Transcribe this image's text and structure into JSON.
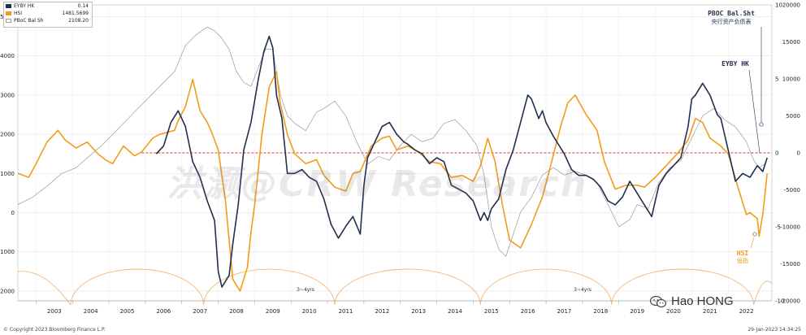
{
  "watermark": "洪灏@CRW Research",
  "legend": [
    {
      "name": "EYBY HK",
      "value": "0.14",
      "color": "#1f2f4f",
      "style": "solid"
    },
    {
      "name": "HSI",
      "value": "1481.5699",
      "color": "#f39c1a",
      "style": "solid"
    },
    {
      "name": "PBoC Bal Sht",
      "value": "2108.20",
      "color": "#999999",
      "style": "thin"
    }
  ],
  "footer": {
    "copyright": "© Copyright 2023 Bloomberg Finance L.P.",
    "timestamp": "29-Jan-2023 14:34:25"
  },
  "brand": "Hao HONG",
  "chart_data": {
    "type": "line",
    "x_ticks": [
      "2003",
      "2004",
      "2005",
      "2006",
      "2007",
      "2008",
      "2009",
      "2010",
      "2011",
      "2012",
      "2013",
      "2014",
      "2015",
      "2016",
      "2017",
      "2018",
      "2019",
      "2020",
      "2021",
      "2022"
    ],
    "left_axis": {
      "ticks": [
        -2000,
        -1000,
        0,
        1000,
        2000,
        3000,
        4000,
        5000
      ],
      "ylim": [
        -2250,
        5300
      ]
    },
    "right_axis": {
      "ticks": [
        -20000,
        -15000,
        -10000,
        -5000,
        0,
        5000,
        10000,
        15000,
        20000
      ],
      "ylim": [
        -20000,
        20000
      ]
    },
    "right_axis_inner": {
      "ticks": [
        -10,
        -5,
        0,
        5,
        10
      ],
      "ylim": [
        -10,
        10
      ]
    },
    "annotations": [
      {
        "text": "PBOC Bal.Sht",
        "subtext": "央行资产负债表"
      },
      {
        "text": "EYBY HK"
      },
      {
        "text": "HSI",
        "subtext": "恒指"
      },
      {
        "text": "3~4yrs"
      },
      {
        "text": "3~4yrs"
      }
    ],
    "cycle_troughs": [
      2003.95,
      2007.6,
      2011.2,
      2015.2,
      2018.8,
      2022.7
    ],
    "zero_line": {
      "value": 0,
      "start": 2005.9
    },
    "series": [
      {
        "name": "HSI",
        "color": "#f39c1a",
        "x": [
          2002.5,
          2002.8,
          2003.0,
          2003.3,
          2003.6,
          2003.8,
          2004.1,
          2004.4,
          2004.7,
          2004.9,
          2005.1,
          2005.4,
          2005.7,
          2005.9,
          2006.2,
          2006.4,
          2006.6,
          2006.8,
          2006.9,
          2007.1,
          2007.3,
          2007.5,
          2007.7,
          2007.8,
          2008.0,
          2008.2,
          2008.4,
          2008.6,
          2008.8,
          2008.9,
          2009.0,
          2009.2,
          2009.4,
          2009.6,
          2009.7,
          2009.9,
          2010.1,
          2010.4,
          2010.7,
          2010.9,
          2011.2,
          2011.5,
          2011.7,
          2011.9,
          2012.2,
          2012.5,
          2012.7,
          2012.9,
          2013.2,
          2013.5,
          2013.8,
          2014.1,
          2014.4,
          2014.7,
          2015.0,
          2015.2,
          2015.4,
          2015.6,
          2015.8,
          2016.0,
          2016.3,
          2016.6,
          2016.9,
          2017.1,
          2017.4,
          2017.6,
          2017.8,
          2018.1,
          2018.4,
          2018.6,
          2018.9,
          2019.2,
          2019.5,
          2019.7,
          2020.0,
          2020.3,
          2020.6,
          2020.9,
          2021.1,
          2021.3,
          2021.5,
          2021.8,
          2022.0,
          2022.3,
          2022.5,
          2022.6,
          2022.8,
          2022.85,
          2022.95,
          2023.07
        ],
        "y": [
          1000,
          900,
          1250,
          1800,
          2100,
          1850,
          1650,
          1800,
          1500,
          1350,
          1250,
          1700,
          1450,
          1550,
          1900,
          2000,
          2050,
          2100,
          2350,
          2700,
          3400,
          2600,
          2300,
          2100,
          1600,
          300,
          -1700,
          -2000,
          -1400,
          -500,
          200,
          2000,
          3200,
          3600,
          2800,
          2000,
          1500,
          1250,
          1350,
          950,
          650,
          550,
          1000,
          1050,
          1700,
          1900,
          1950,
          1600,
          1700,
          1550,
          1300,
          1250,
          900,
          950,
          800,
          1200,
          1900,
          1300,
          200,
          -700,
          -900,
          -300,
          400,
          1100,
          2200,
          2800,
          3000,
          2500,
          2100,
          1300,
          600,
          700,
          700,
          650,
          900,
          1200,
          1500,
          1850,
          2400,
          2300,
          1900,
          1700,
          1500,
          550,
          -50,
          0,
          -150,
          -600,
          -50,
          1000
        ]
      },
      {
        "name": "EYBY HK",
        "color": "#1f2f4f",
        "x": [
          2006.3,
          2006.5,
          2006.7,
          2006.9,
          2007.1,
          2007.3,
          2007.5,
          2007.7,
          2007.9,
          2008.0,
          2008.1,
          2008.3,
          2008.4,
          2008.55,
          2008.7,
          2008.9,
          2009.1,
          2009.25,
          2009.4,
          2009.5,
          2009.6,
          2009.75,
          2009.9,
          2010.1,
          2010.3,
          2010.5,
          2010.7,
          2010.9,
          2011.1,
          2011.3,
          2011.5,
          2011.7,
          2011.9,
          2012.0,
          2012.1,
          2012.3,
          2012.5,
          2012.7,
          2012.9,
          2013.1,
          2013.2,
          2013.4,
          2013.6,
          2013.8,
          2014.0,
          2014.2,
          2014.4,
          2014.6,
          2014.8,
          2015.0,
          2015.2,
          2015.3,
          2015.4,
          2015.5,
          2015.7,
          2015.9,
          2016.1,
          2016.3,
          2016.5,
          2016.6,
          2016.8,
          2016.9,
          2017.0,
          2017.2,
          2017.5,
          2017.7,
          2017.9,
          2018.1,
          2018.3,
          2018.5,
          2018.7,
          2018.9,
          2019.1,
          2019.3,
          2019.5,
          2019.7,
          2019.9,
          2020.0,
          2020.1,
          2020.3,
          2020.5,
          2020.7,
          2020.9,
          2021.0,
          2021.1,
          2021.3,
          2021.5,
          2021.7,
          2021.8,
          2022.0,
          2022.2,
          2022.4,
          2022.6,
          2022.8,
          2022.95,
          2023.07
        ],
        "y": [
          1500,
          1700,
          2300,
          2600,
          2200,
          1300,
          900,
          300,
          -200,
          -1500,
          -1900,
          -1600,
          -800,
          200,
          1600,
          2300,
          3400,
          4100,
          4500,
          4200,
          3000,
          2400,
          1000,
          1000,
          1100,
          900,
          800,
          350,
          -300,
          -650,
          -350,
          -100,
          -550,
          700,
          1400,
          1800,
          2200,
          2300,
          2000,
          1800,
          1750,
          1600,
          1500,
          1250,
          1400,
          1300,
          700,
          600,
          500,
          300,
          -200,
          0,
          -200,
          100,
          350,
          1100,
          1600,
          2300,
          3000,
          2900,
          2400,
          2600,
          2300,
          1950,
          1500,
          1100,
          950,
          950,
          850,
          650,
          300,
          200,
          400,
          800,
          500,
          200,
          -100,
          300,
          700,
          1000,
          1200,
          1400,
          2200,
          2900,
          3000,
          3300,
          3000,
          2500,
          2400,
          1600,
          800,
          1000,
          900,
          1200,
          1050,
          1400
        ]
      },
      {
        "name": "PBoC Bal Sht",
        "color": "#8a8a8a",
        "x": [
          2002.5,
          2002.9,
          2003.3,
          2003.7,
          2004.1,
          2004.4,
          2004.8,
          2005.1,
          2005.4,
          2005.8,
          2006.1,
          2006.5,
          2006.8,
          2007.1,
          2007.4,
          2007.7,
          2007.9,
          2008.1,
          2008.3,
          2008.5,
          2008.7,
          2008.9,
          2009.1,
          2009.3,
          2009.5,
          2009.7,
          2009.9,
          2010.1,
          2010.4,
          2010.7,
          2010.9,
          2011.2,
          2011.5,
          2011.8,
          2012.1,
          2012.4,
          2012.7,
          2013.0,
          2013.3,
          2013.6,
          2013.9,
          2014.2,
          2014.5,
          2014.8,
          2015.1,
          2015.3,
          2015.5,
          2015.7,
          2015.9,
          2016.1,
          2016.3,
          2016.6,
          2016.9,
          2017.2,
          2017.5,
          2017.8,
          2018.1,
          2018.4,
          2018.7,
          2019.0,
          2019.3,
          2019.5,
          2019.8,
          2020.1,
          2020.4,
          2020.7,
          2021.0,
          2021.3,
          2021.6,
          2021.9,
          2022.2,
          2022.5,
          2022.7,
          2022.85,
          2023.0
        ],
        "y": [
          -7000,
          -6000,
          -4500,
          -2800,
          -2000,
          -700,
          1000,
          2500,
          4000,
          6000,
          7500,
          9500,
          11000,
          14500,
          16000,
          17000,
          16500,
          15500,
          14000,
          11000,
          9500,
          9000,
          11500,
          14000,
          14000,
          8000,
          5000,
          4000,
          3000,
          5500,
          6000,
          7000,
          5000,
          1500,
          -1500,
          -500,
          -1000,
          1000,
          2500,
          1500,
          2000,
          4000,
          4500,
          3000,
          1000,
          -3000,
          -10000,
          -13000,
          -14000,
          -11000,
          -8000,
          -6000,
          -3000,
          -2000,
          -3000,
          -2500,
          -3000,
          -4000,
          -7000,
          -10000,
          -9000,
          -7000,
          -7500,
          -4000,
          -2000,
          -1000,
          2000,
          5000,
          6000,
          4500,
          3500,
          1500,
          -1000,
          -2000,
          -1500
        ]
      }
    ]
  }
}
